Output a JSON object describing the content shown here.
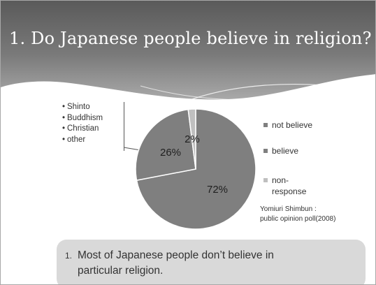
{
  "slide": {
    "title": "1. Do Japanese people believe in  religion?"
  },
  "categories_box": {
    "items": [
      "Shinto",
      "Buddhism",
      "Christian",
      "other"
    ]
  },
  "chart_data": {
    "type": "pie",
    "title": "",
    "slices": [
      {
        "label": "not believe",
        "value": 72,
        "value_label": "72%",
        "color": "#7f7f7f"
      },
      {
        "label": "believe",
        "value": 26,
        "value_label": "26%",
        "color": "#7f7f7f"
      },
      {
        "label": "non-response",
        "value": 2,
        "value_label": "2%",
        "color": "#bfbfbf"
      }
    ],
    "legend": {
      "placement": "right",
      "entries": [
        {
          "label": "not believe",
          "color": "#7f7f7f"
        },
        {
          "label": "believe",
          "color": "#7f7f7f"
        },
        {
          "label": "non-\nresponse",
          "color": "#bfbfbf"
        }
      ]
    }
  },
  "source": {
    "line1": "Yomiuri Shimbun :",
    "line2": "public opinion poll(2008)"
  },
  "takeaway": {
    "number": "1.",
    "text": "Most of Japanese people don’t believe in particular religion."
  }
}
